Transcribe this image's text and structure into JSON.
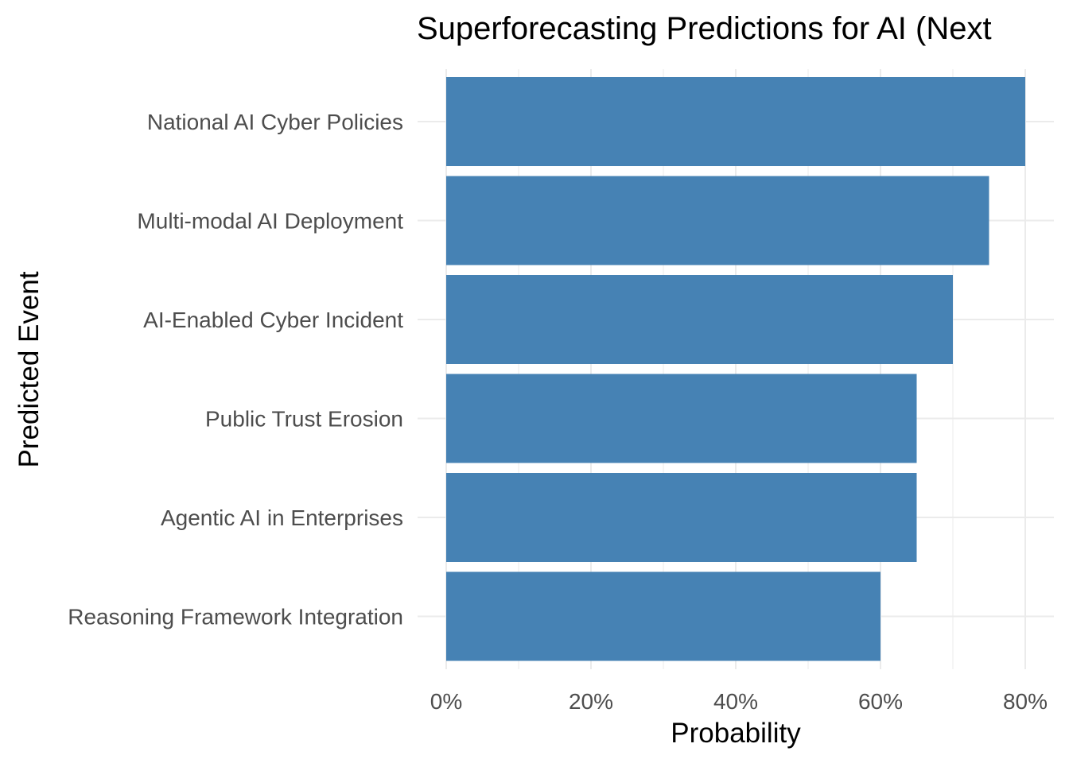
{
  "chart_data": {
    "type": "bar",
    "orientation": "horizontal",
    "title": "Superforecasting Predictions for AI (Next",
    "xlabel": "Probability",
    "ylabel": "Predicted Event",
    "categories": [
      "National AI Cyber Policies",
      "Multi-modal AI Deployment",
      "AI-Enabled Cyber Incident",
      "Public Trust Erosion",
      "Agentic AI in Enterprises",
      "Reasoning Framework Integration"
    ],
    "values": [
      80,
      75,
      70,
      65,
      65,
      60
    ],
    "value_unit": "%",
    "xlim": [
      0,
      80
    ],
    "xticks": [
      "0%",
      "20%",
      "40%",
      "60%",
      "80%"
    ],
    "bar_color": "#4682B4",
    "grid_color": "#EBEBEB",
    "grid": true,
    "legend": "none"
  }
}
